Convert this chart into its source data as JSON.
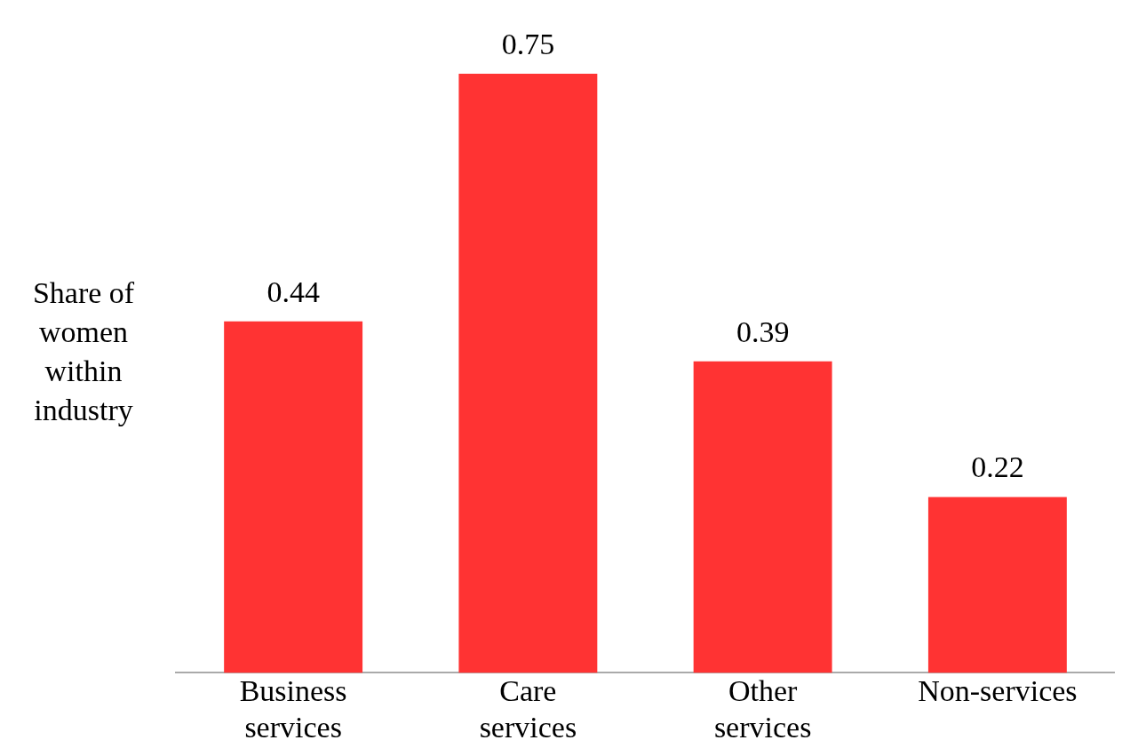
{
  "chart_data": {
    "type": "bar",
    "ylabel": "Share of women within industry",
    "categories": [
      "Business services",
      "Care services",
      "Other services",
      "Non-services"
    ],
    "values": [
      0.44,
      0.75,
      0.39,
      0.22
    ],
    "color": "#ff3333",
    "data_labels": true,
    "grid": false,
    "legend": false
  }
}
